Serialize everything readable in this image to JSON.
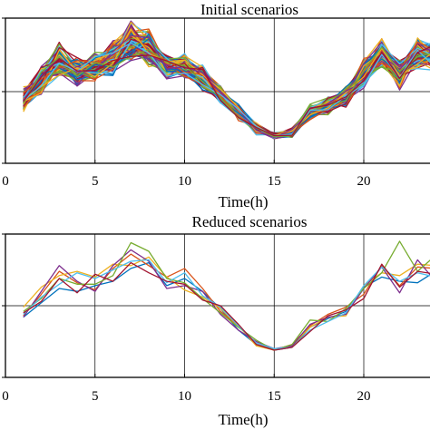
{
  "chart_data": [
    {
      "type": "line",
      "title": "Initial scenarios",
      "xlabel": "Time(h)",
      "ylabel": "",
      "xlim": [
        0,
        24
      ],
      "ylim": [
        0,
        1
      ],
      "xticks": [
        0,
        5,
        10,
        15,
        20
      ],
      "grid": true,
      "colors": [
        "#0072bd",
        "#d95319",
        "#edb120",
        "#7e2f8e",
        "#77ac30",
        "#4dbeee",
        "#a2142f"
      ],
      "series_count": 140,
      "x": [
        1,
        2,
        3,
        4,
        5,
        6,
        7,
        8,
        9,
        10,
        11,
        12,
        13,
        14,
        15,
        16,
        17,
        18,
        19,
        20,
        21,
        22,
        23,
        24
      ],
      "mean": [
        0.44,
        0.57,
        0.71,
        0.63,
        0.67,
        0.73,
        0.84,
        0.79,
        0.67,
        0.67,
        0.59,
        0.47,
        0.35,
        0.24,
        0.19,
        0.21,
        0.35,
        0.4,
        0.46,
        0.62,
        0.76,
        0.62,
        0.76,
        0.74
      ],
      "spread": [
        0.06,
        0.07,
        0.08,
        0.07,
        0.07,
        0.09,
        0.1,
        0.09,
        0.07,
        0.07,
        0.06,
        0.05,
        0.04,
        0.03,
        0.015,
        0.025,
        0.04,
        0.045,
        0.05,
        0.07,
        0.08,
        0.07,
        0.08,
        0.08
      ]
    },
    {
      "type": "line",
      "title": "Reduced scenarios",
      "xlabel": "Time(h)",
      "ylabel": "",
      "xlim": [
        0,
        24
      ],
      "ylim": [
        0,
        1
      ],
      "xticks": [
        0,
        5,
        10,
        15,
        20
      ],
      "grid": true,
      "x": [
        1,
        2,
        3,
        4,
        5,
        6,
        7,
        8,
        9,
        10,
        11,
        12,
        13,
        14,
        15,
        16,
        17,
        18,
        19,
        20,
        21,
        22,
        23,
        24
      ],
      "series": [
        {
          "color": "#0072bd",
          "values": [
            0.42,
            0.52,
            0.62,
            0.6,
            0.64,
            0.67,
            0.76,
            0.8,
            0.64,
            0.69,
            0.6,
            0.48,
            0.33,
            0.23,
            0.19,
            0.21,
            0.35,
            0.41,
            0.46,
            0.63,
            0.7,
            0.67,
            0.66,
            0.74
          ]
        },
        {
          "color": "#d95319",
          "values": [
            0.43,
            0.58,
            0.74,
            0.66,
            0.61,
            0.76,
            0.86,
            0.78,
            0.7,
            0.76,
            0.62,
            0.46,
            0.36,
            0.24,
            0.19,
            0.23,
            0.36,
            0.44,
            0.49,
            0.58,
            0.78,
            0.64,
            0.77,
            0.76
          ]
        },
        {
          "color": "#edb120",
          "values": [
            0.49,
            0.63,
            0.71,
            0.74,
            0.7,
            0.79,
            0.78,
            0.84,
            0.7,
            0.61,
            0.56,
            0.48,
            0.36,
            0.22,
            0.19,
            0.22,
            0.35,
            0.42,
            0.43,
            0.64,
            0.73,
            0.71,
            0.79,
            0.78
          ]
        },
        {
          "color": "#7e2f8e",
          "values": [
            0.42,
            0.6,
            0.78,
            0.67,
            0.6,
            0.78,
            0.89,
            0.81,
            0.62,
            0.64,
            0.6,
            0.44,
            0.33,
            0.25,
            0.2,
            0.22,
            0.37,
            0.42,
            0.44,
            0.62,
            0.77,
            0.59,
            0.82,
            0.67
          ]
        },
        {
          "color": "#77ac30",
          "values": [
            0.46,
            0.55,
            0.69,
            0.65,
            0.65,
            0.71,
            0.94,
            0.88,
            0.69,
            0.66,
            0.55,
            0.45,
            0.35,
            0.26,
            0.19,
            0.23,
            0.4,
            0.39,
            0.48,
            0.62,
            0.73,
            0.95,
            0.74,
            0.85
          ]
        },
        {
          "color": "#4dbeee",
          "values": [
            0.44,
            0.56,
            0.65,
            0.73,
            0.69,
            0.75,
            0.81,
            0.82,
            0.66,
            0.73,
            0.57,
            0.49,
            0.36,
            0.24,
            0.2,
            0.21,
            0.33,
            0.39,
            0.45,
            0.64,
            0.77,
            0.67,
            0.73,
            0.7
          ]
        },
        {
          "color": "#a2142f",
          "values": [
            0.45,
            0.53,
            0.69,
            0.59,
            0.72,
            0.67,
            0.8,
            0.73,
            0.67,
            0.65,
            0.54,
            0.5,
            0.37,
            0.23,
            0.19,
            0.21,
            0.32,
            0.43,
            0.47,
            0.55,
            0.79,
            0.63,
            0.74,
            0.72
          ]
        }
      ]
    }
  ]
}
